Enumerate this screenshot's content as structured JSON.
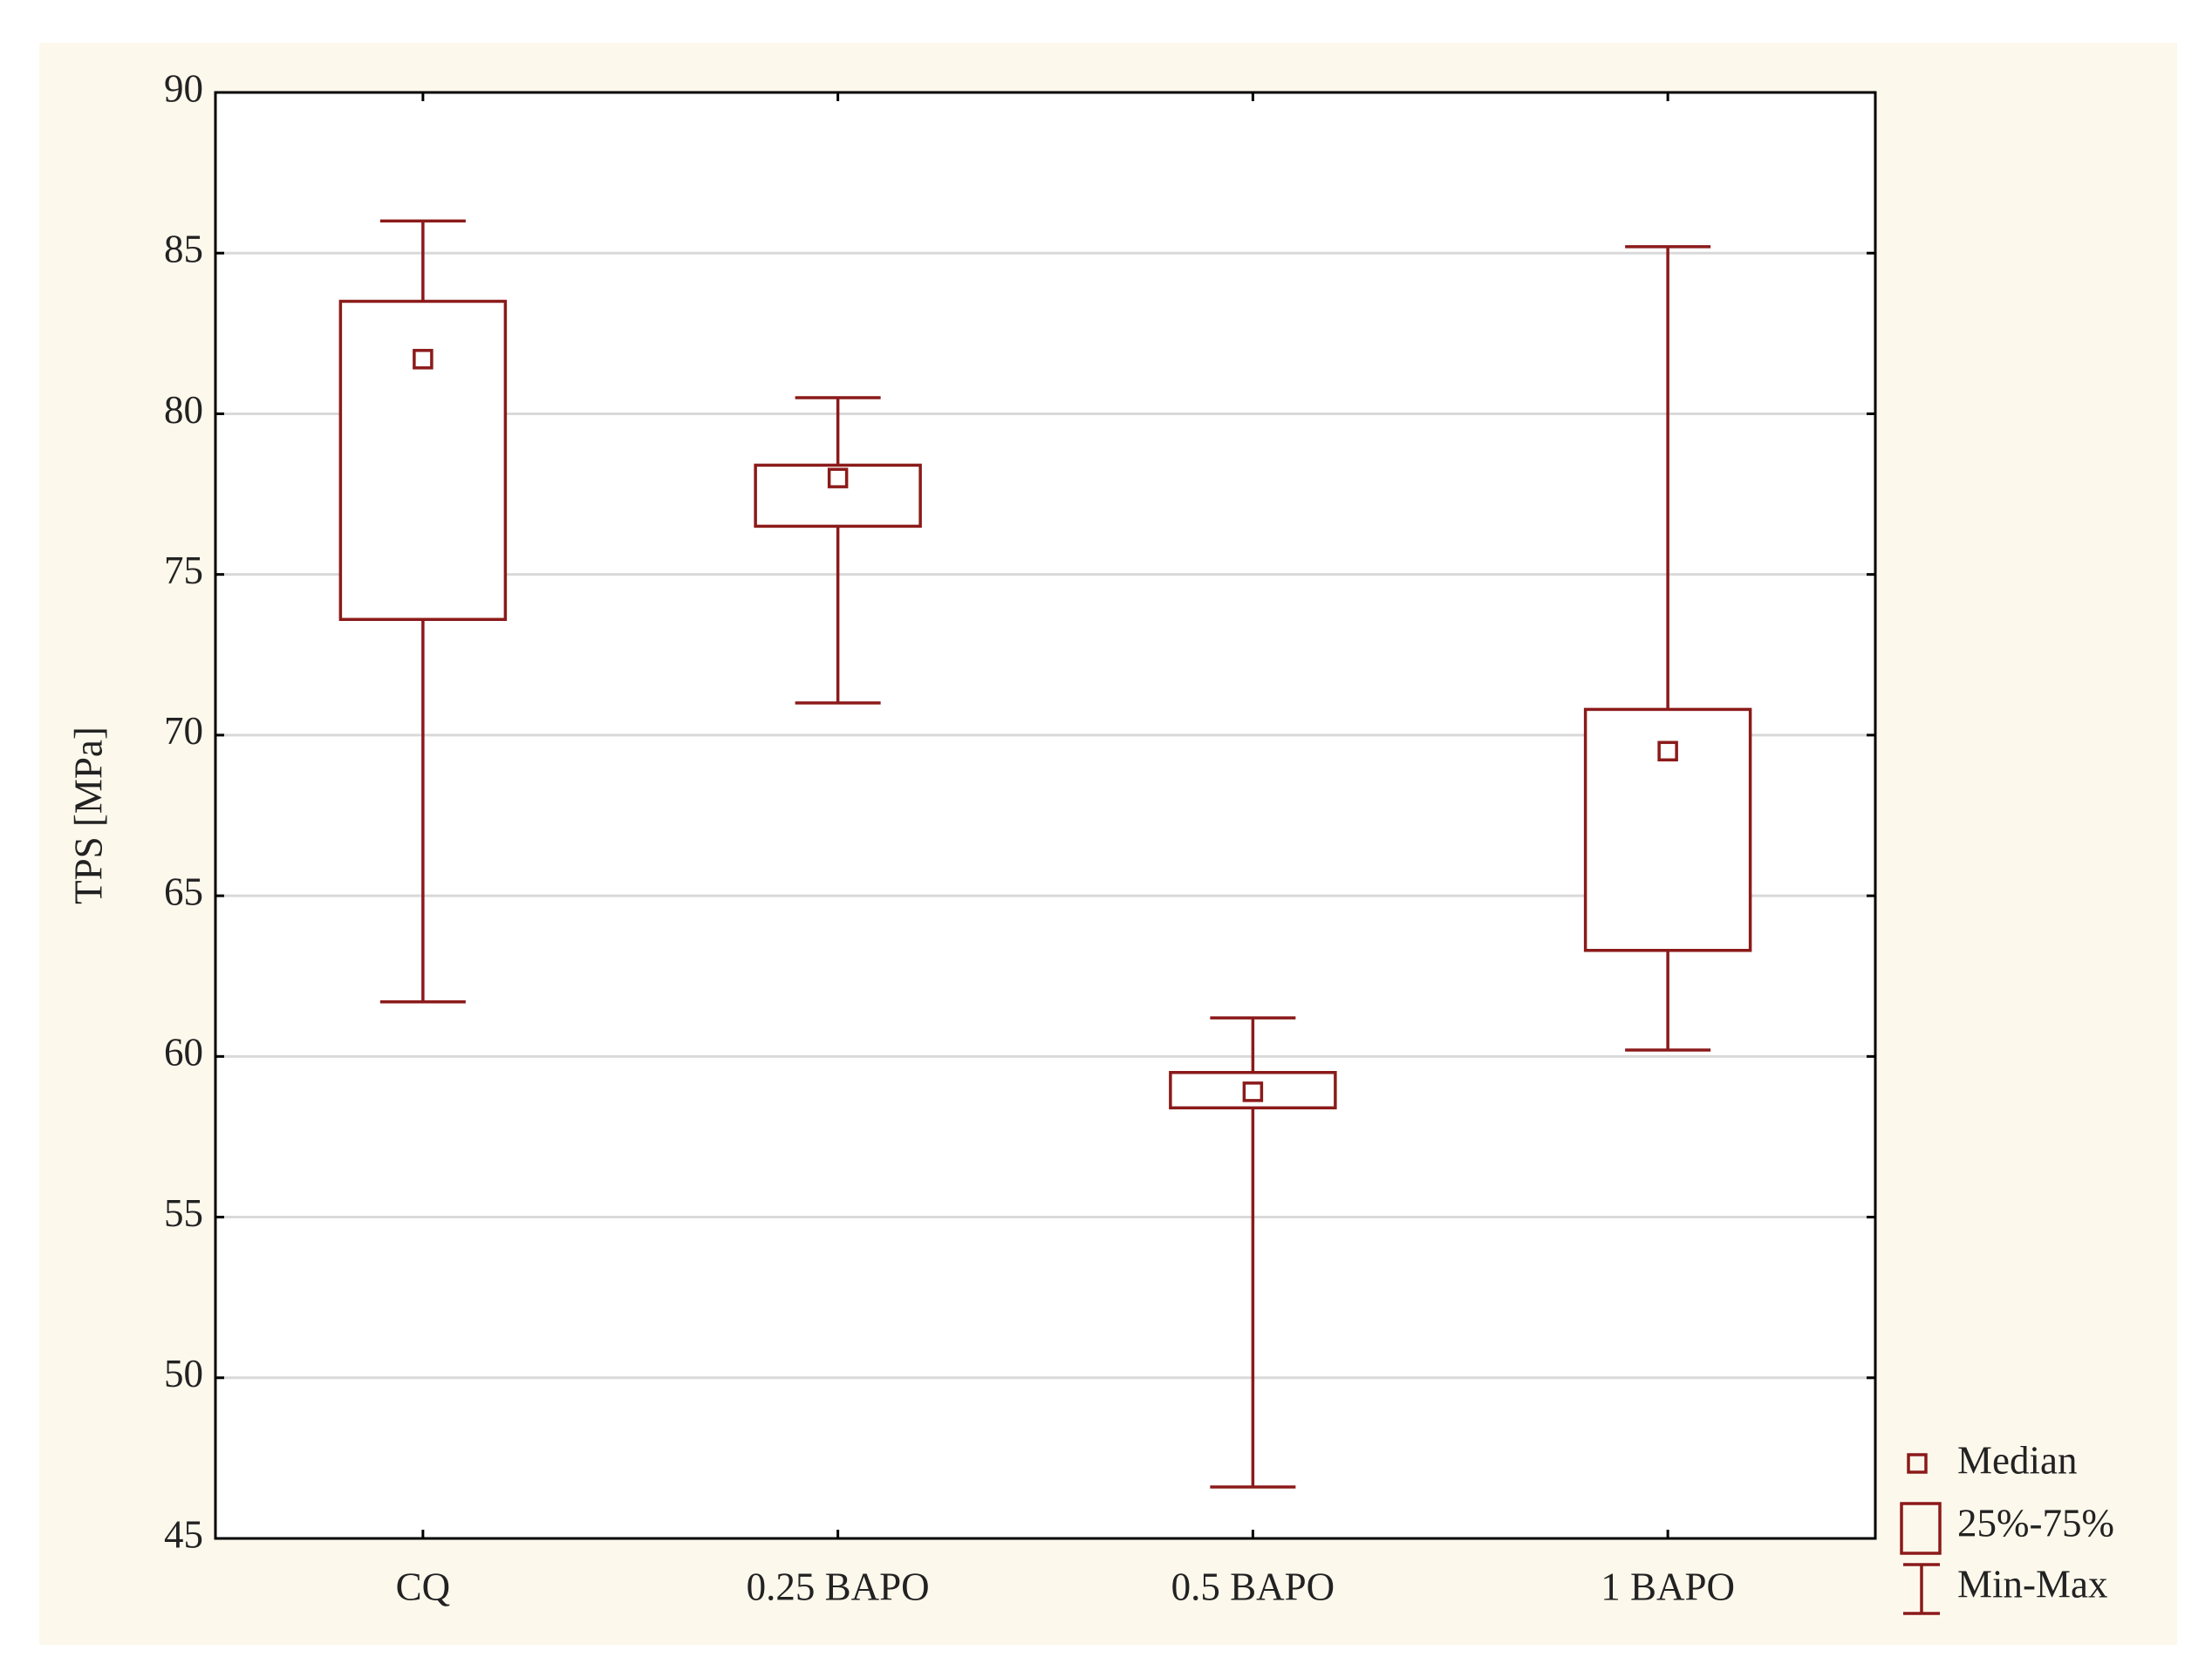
{
  "chart_data": {
    "type": "box",
    "y_label": "TPS [MPa]",
    "categories": [
      "CQ",
      "0.25 BAPO",
      "0.5 BAPO",
      "1 BAPO"
    ],
    "min": [
      61.7,
      71.0,
      46.6,
      60.2
    ],
    "q1": [
      73.6,
      76.5,
      58.4,
      63.3
    ],
    "median": [
      81.7,
      78.0,
      58.9,
      69.5
    ],
    "q3": [
      83.5,
      78.4,
      59.5,
      70.8
    ],
    "max": [
      86.0,
      80.5,
      61.2,
      85.2
    ],
    "color": "#8b1a1a",
    "ylim": [
      45,
      90
    ],
    "yticks": [
      45,
      50,
      55,
      60,
      65,
      70,
      75,
      80,
      85,
      90
    ],
    "grid": true,
    "legend": [
      "Median",
      "25%-75%",
      "Min-Max"
    ]
  }
}
